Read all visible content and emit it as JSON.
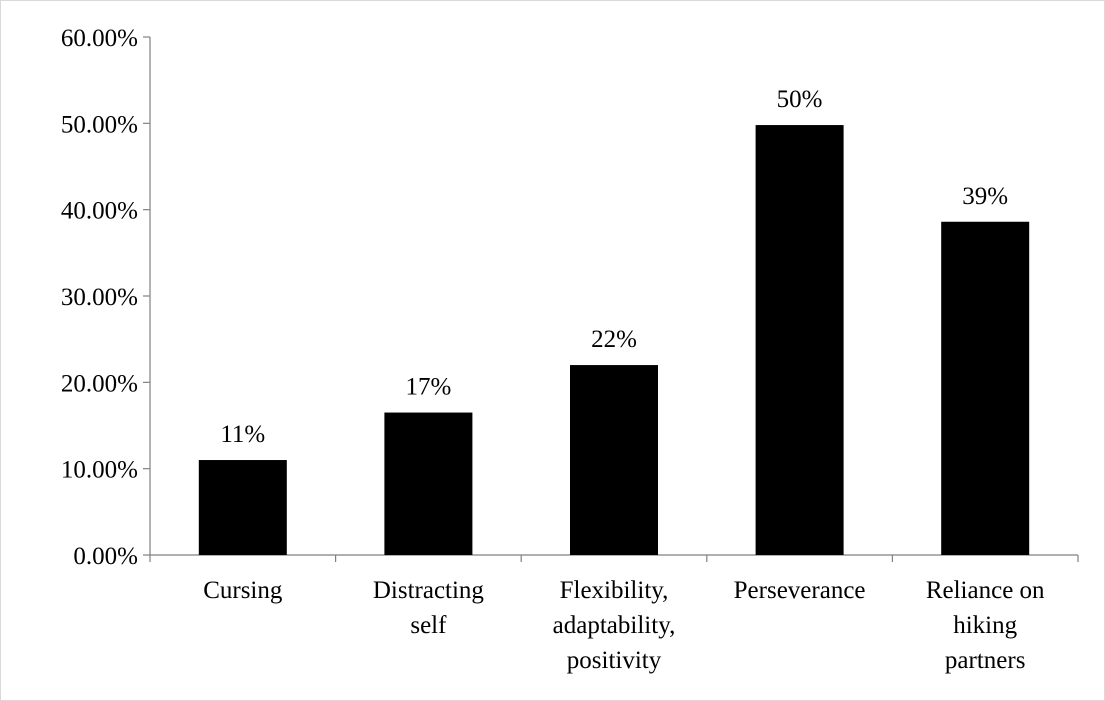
{
  "chart_data": {
    "type": "bar",
    "title": "",
    "xlabel": "",
    "ylabel": "",
    "categories": [
      [
        "Cursing"
      ],
      [
        "Distracting",
        "self"
      ],
      [
        "Flexibility,",
        "adaptability,",
        "positivity"
      ],
      [
        "Perseverance"
      ],
      [
        "Reliance on",
        "hiking",
        "partners"
      ]
    ],
    "values": [
      0.11,
      0.165,
      0.22,
      0.498,
      0.386
    ],
    "data_labels": [
      "11%",
      "17%",
      "22%",
      "50%",
      "39%"
    ],
    "ylim": [
      0,
      0.6
    ],
    "yticks": [
      0,
      0.1,
      0.2,
      0.3,
      0.4,
      0.5,
      0.6
    ],
    "ytick_labels": [
      "0.00%",
      "10.00%",
      "20.00%",
      "30.00%",
      "40.00%",
      "50.00%",
      "60.00%"
    ],
    "grid": false,
    "legend": "none",
    "bar_color": "#000000",
    "axis_color": "#808080"
  }
}
